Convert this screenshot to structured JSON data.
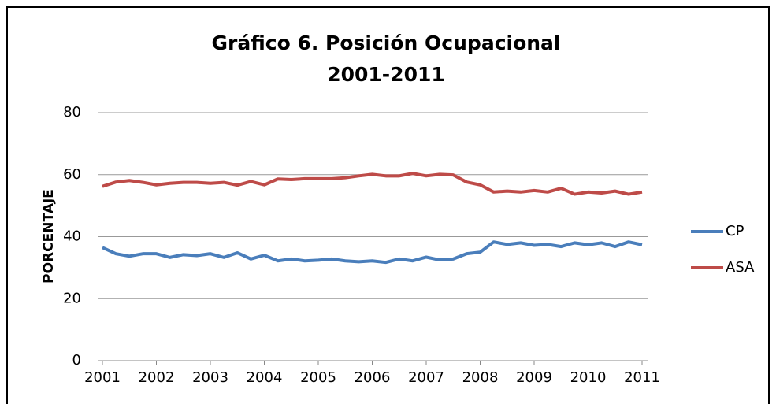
{
  "chart_data": {
    "type": "line",
    "title": [
      "Gráfico 6. Posición Ocupacional",
      "2001-2011"
    ],
    "y_label": "PORCENTAJE",
    "x": [
      2001,
      2001.25,
      2001.5,
      2001.75,
      2002,
      2002.25,
      2002.5,
      2002.75,
      2003,
      2003.25,
      2003.5,
      2003.75,
      2004,
      2004.25,
      2004.5,
      2004.75,
      2005,
      2005.25,
      2005.5,
      2005.75,
      2006,
      2006.25,
      2006.5,
      2006.75,
      2007,
      2007.25,
      2007.5,
      2007.75,
      2008,
      2008.25,
      2008.5,
      2008.75,
      2009,
      2009.25,
      2009.5,
      2009.75,
      2010,
      2010.25,
      2010.5,
      2010.75,
      2011
    ],
    "series": [
      {
        "name": "CP",
        "color": "#4a7ebb",
        "values": [
          36.5,
          34.5,
          33.7,
          34.5,
          34.5,
          33.3,
          34.2,
          33.9,
          34.5,
          33.3,
          34.8,
          32.8,
          34.0,
          32.2,
          32.8,
          32.2,
          32.4,
          32.8,
          32.2,
          31.9,
          32.2,
          31.7,
          32.8,
          32.2,
          33.4,
          32.5,
          32.8,
          34.5,
          35.0,
          38.3,
          37.5,
          38.0,
          37.2,
          37.5,
          36.8,
          38.0,
          37.4,
          38.0,
          36.8,
          38.3,
          37.4
        ]
      },
      {
        "name": "ASA",
        "color": "#be4b48",
        "values": [
          56.2,
          57.6,
          58.1,
          57.5,
          56.7,
          57.2,
          57.5,
          57.5,
          57.2,
          57.5,
          56.6,
          57.8,
          56.7,
          58.6,
          58.4,
          58.7,
          58.7,
          58.7,
          59.0,
          59.6,
          60.1,
          59.6,
          59.6,
          60.4,
          59.6,
          60.1,
          59.9,
          57.6,
          56.7,
          54.4,
          54.7,
          54.4,
          54.9,
          54.4,
          55.6,
          53.7,
          54.4,
          54.1,
          54.7,
          53.7,
          54.4
        ]
      }
    ],
    "xlim": [
      2001,
      2011
    ],
    "xticks": [
      2001,
      2002,
      2003,
      2004,
      2005,
      2006,
      2007,
      2008,
      2009,
      2010,
      2011
    ],
    "ylim": [
      0,
      80
    ],
    "yticks": [
      0,
      20,
      40,
      60,
      80
    ],
    "grid": true,
    "legend": "right"
  }
}
